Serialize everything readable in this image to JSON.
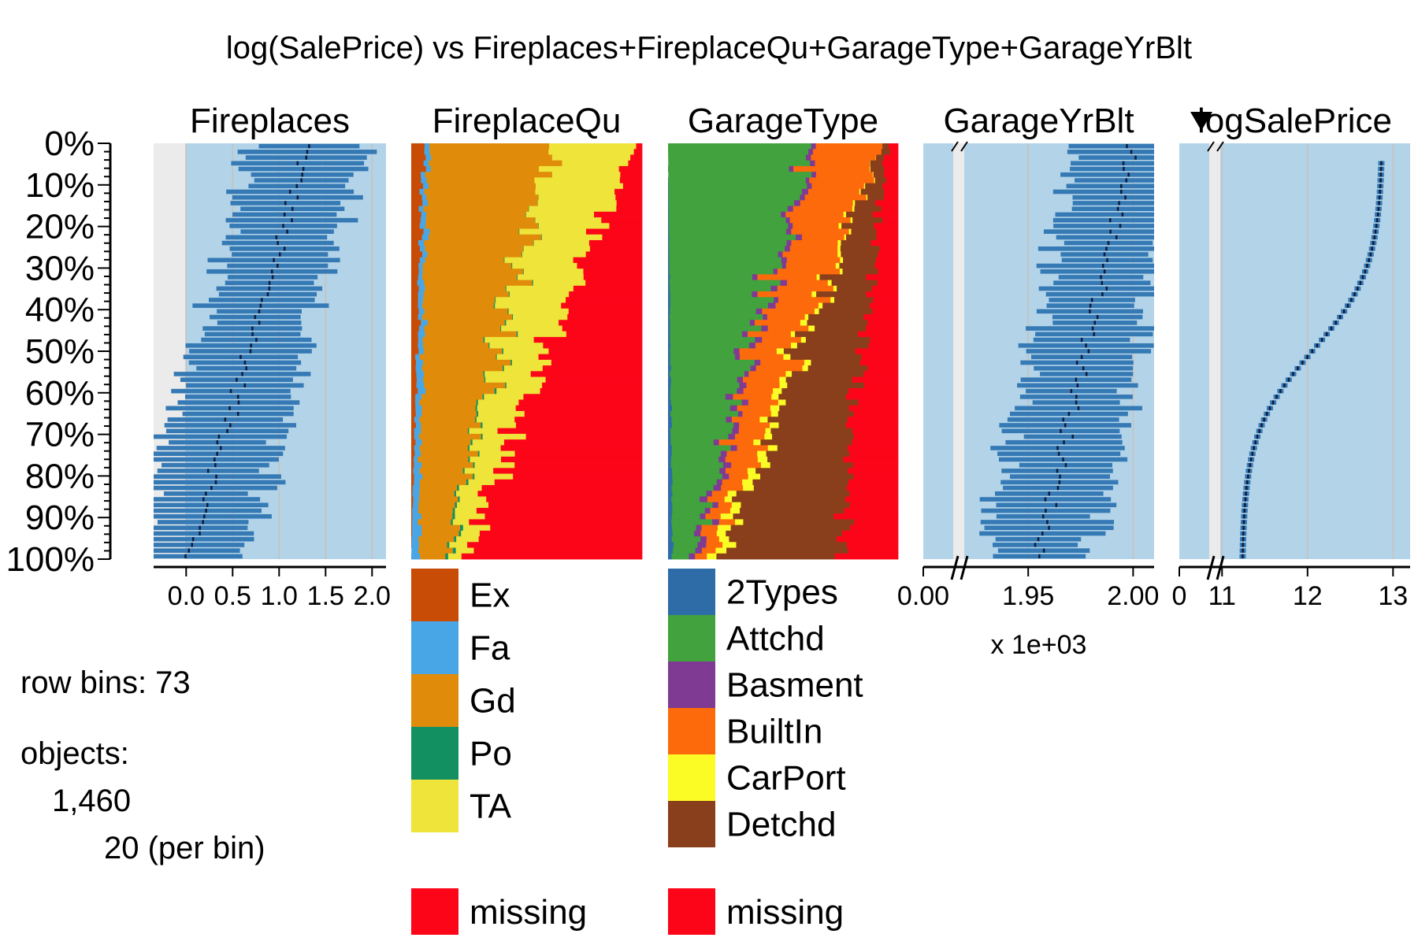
{
  "chart_data": {
    "type": "tableplot",
    "title": "log(SalePrice) vs Fireplaces+FireplaceQu+GarageType+GarageYrBlt",
    "row_bins": 73,
    "objects": 1460,
    "per_bin": 20,
    "row_bins_text": "row bins: 73",
    "objects_label": "objects:",
    "objects_text": "1,460",
    "per_bin_text": "20 (per bin)",
    "y_ticks": [
      "0%",
      "10%",
      "20%",
      "30%",
      "40%",
      "50%",
      "60%",
      "70%",
      "80%",
      "90%",
      "100%"
    ],
    "sort_column": "logSalePrice",
    "sort_order": "decreasing",
    "columns": [
      {
        "name": "Fireplaces",
        "kind": "numeric",
        "x_ticks": [
          "0.0",
          "0.5",
          "1.0",
          "1.5",
          "2.0"
        ],
        "x_tick_values": [
          0,
          0.5,
          1,
          1.5,
          2
        ],
        "xlim": [
          -0.35,
          2.15
        ],
        "mean_start": 1.3,
        "mean_end": 0.05,
        "broken_axis": false,
        "scale_note": ""
      },
      {
        "name": "FireplaceQu",
        "kind": "categorical",
        "levels": [
          "Ex",
          "Fa",
          "Gd",
          "Po",
          "TA"
        ],
        "colors": [
          "#c84b06",
          "#48a6e6",
          "#e08c0a",
          "#139062",
          "#eee43a"
        ],
        "missing_label": "missing",
        "missing_color": "#fc0519",
        "start_shares": [
          0.05,
          0.02,
          0.55,
          0.0,
          0.35,
          0.03
        ],
        "end_shares": [
          0.0,
          0.03,
          0.1,
          0.01,
          0.07,
          0.79
        ]
      },
      {
        "name": "GarageType",
        "kind": "categorical",
        "levels": [
          "2Types",
          "Attchd",
          "Basment",
          "BuiltIn",
          "CarPort",
          "Detchd"
        ],
        "colors": [
          "#2e6ca8",
          "#41a23e",
          "#7f3a94",
          "#fd6a0b",
          "#fbfc25",
          "#8a3f1c"
        ],
        "missing_label": "missing",
        "missing_color": "#fc0519",
        "start_shares": [
          0.0,
          0.6,
          0.02,
          0.3,
          0.0,
          0.03,
          0.05
        ],
        "end_shares": [
          0.02,
          0.1,
          0.03,
          0.05,
          0.05,
          0.5,
          0.25
        ]
      },
      {
        "name": "GarageYrBlt",
        "kind": "numeric",
        "x_ticks": [
          "0.00",
          "1.95",
          "2.00"
        ],
        "x_tick_values": [
          0,
          1.95,
          2.0
        ],
        "xlim": [
          1.9,
          2.01
        ],
        "mean_start": 2.0,
        "mean_end": 1.955,
        "broken_axis": true,
        "scale_note": "x 1e+03"
      },
      {
        "name": "logSalePrice",
        "kind": "numeric",
        "x_ticks": [
          "0",
          "11",
          "12",
          "13"
        ],
        "x_tick_values": [
          0,
          11,
          12,
          13
        ],
        "xlim": [
          10.5,
          13.2
        ],
        "mean_start": 13.1,
        "mean_end": 10.9,
        "broken_axis": true,
        "scale_note": ""
      }
    ]
  }
}
